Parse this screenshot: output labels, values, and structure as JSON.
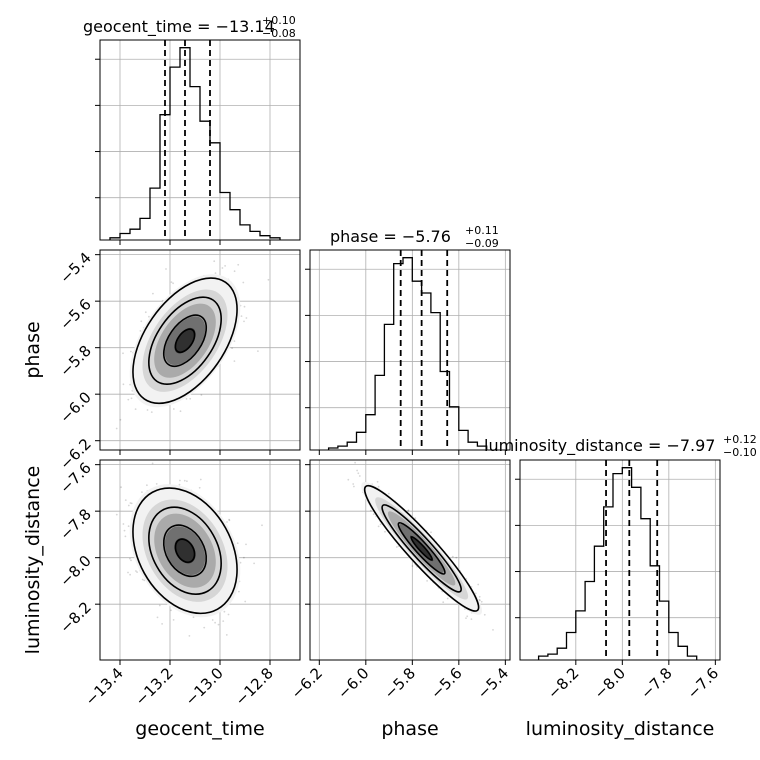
{
  "chart_data": {
    "type": "corner",
    "parameters": [
      "geocent_time",
      "phase",
      "luminosity_distance"
    ],
    "axis_labels": [
      "geocent_time",
      "phase",
      "luminosity_distance"
    ],
    "ranges": [
      [
        -13.48,
        -12.68
      ],
      [
        -6.24,
        -5.38
      ],
      [
        -8.44,
        -7.58
      ]
    ],
    "ticks": [
      [
        -13.4,
        -13.2,
        -13.0,
        -12.8
      ],
      [
        -6.2,
        -6.0,
        -5.8,
        -5.6,
        -5.4
      ],
      [
        -8.2,
        -8.0,
        -7.8,
        -7.6
      ]
    ],
    "tick_labels": [
      [
        "−13.4",
        "−13.2",
        "−13.0",
        "−12.8"
      ],
      [
        "−6.2",
        "−6.0",
        "−5.8",
        "−5.6",
        "−5.4"
      ],
      [
        "−8.2",
        "−8.0",
        "−7.8",
        "−7.6"
      ]
    ],
    "titles": [
      {
        "text": "geocent_time = −13.14",
        "sup": "+0.10",
        "sub": "−0.08",
        "median": -13.14,
        "lo": -13.22,
        "hi": -13.04
      },
      {
        "text": "phase = −5.76",
        "sup": "+0.11",
        "sub": "−0.09",
        "median": -5.76,
        "lo": -5.85,
        "hi": -5.65
      },
      {
        "text": "luminosity_distance = −7.97",
        "sup": "+0.12",
        "sub": "−0.10",
        "median": -7.97,
        "lo": -8.07,
        "hi": -7.85
      }
    ],
    "histograms": [
      {
        "bin_edges": [
          -13.44,
          -13.4,
          -13.36,
          -13.32,
          -13.28,
          -13.24,
          -13.2,
          -13.16,
          -13.12,
          -13.08,
          -13.04,
          -13.0,
          -12.96,
          -12.92,
          -12.88,
          -12.84,
          -12.8,
          -12.76
        ],
        "counts": [
          1,
          3,
          5,
          10,
          24,
          58,
          80,
          89,
          71,
          55,
          45,
          22,
          14,
          7,
          4,
          2,
          1
        ]
      },
      {
        "bin_edges": [
          -6.16,
          -6.12,
          -6.08,
          -6.04,
          -6.0,
          -5.96,
          -5.92,
          -5.88,
          -5.84,
          -5.8,
          -5.76,
          -5.72,
          -5.68,
          -5.64,
          -5.6,
          -5.56,
          -5.52,
          -5.48
        ],
        "counts": [
          1,
          2,
          4,
          9,
          18,
          38,
          64,
          95,
          98,
          86,
          80,
          70,
          40,
          22,
          10,
          4,
          2
        ]
      },
      {
        "bin_edges": [
          -8.36,
          -8.32,
          -8.28,
          -8.24,
          -8.2,
          -8.16,
          -8.12,
          -8.08,
          -8.04,
          -8.0,
          -7.96,
          -7.92,
          -7.88,
          -7.84,
          -7.8,
          -7.76,
          -7.72,
          -7.68
        ],
        "counts": [
          2,
          3,
          6,
          14,
          25,
          40,
          58,
          78,
          95,
          98,
          88,
          72,
          48,
          30,
          14,
          7,
          2
        ]
      }
    ],
    "joint_panels": [
      {
        "x": "geocent_time",
        "y": "phase",
        "mean": [
          -13.14,
          -5.77
        ],
        "sd": [
          0.085,
          0.11
        ],
        "corr": 0.5
      },
      {
        "x": "geocent_time",
        "y": "luminosity_distance",
        "mean": [
          -13.14,
          -7.97
        ],
        "sd": [
          0.085,
          0.11
        ],
        "corr": -0.3
      },
      {
        "x": "phase",
        "y": "luminosity_distance",
        "mean": [
          -5.76,
          -7.96
        ],
        "sd": [
          0.1,
          0.11
        ],
        "corr": -0.94
      }
    ],
    "grid": true
  }
}
